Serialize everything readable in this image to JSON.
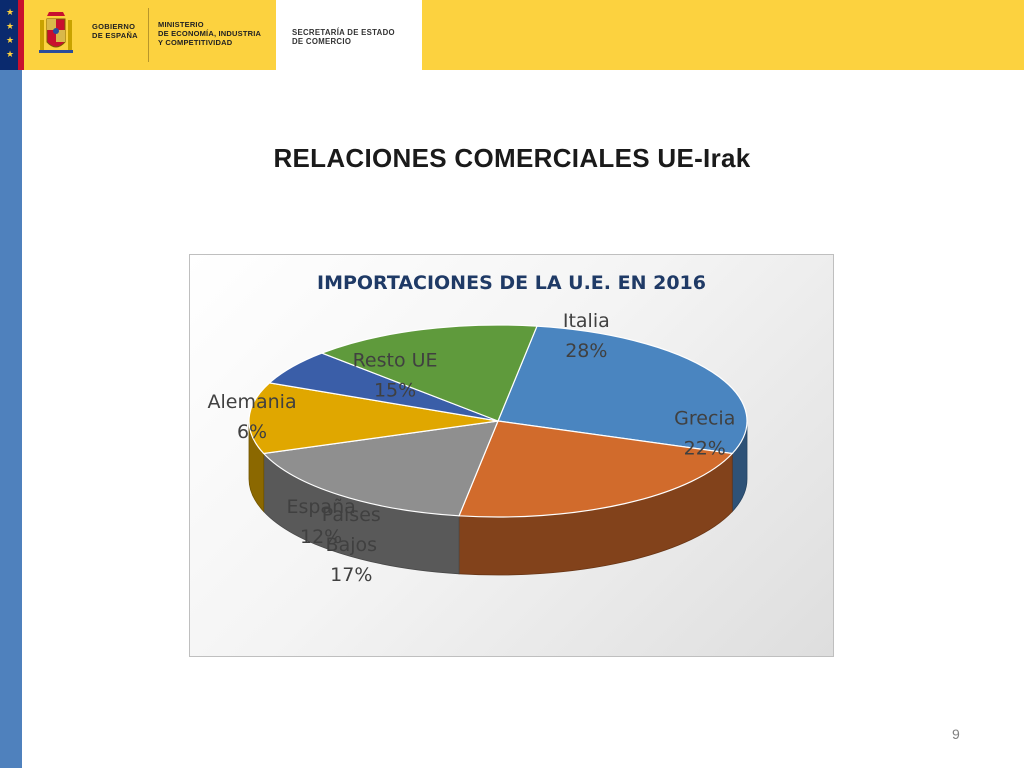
{
  "header": {
    "gobierno_line1": "GOBIERNO",
    "gobierno_line2": "DE ESPAÑA",
    "ministerio_line1": "MINISTERIO",
    "ministerio_line2": "DE ECONOMÍA, INDUSTRIA",
    "ministerio_line3": "Y COMPETITIVIDAD",
    "secretaria_line1": "SECRETARÍA DE ESTADO",
    "secretaria_line2": "DE COMERCIO",
    "colors": {
      "header_yellow": "#fcd23f",
      "side_bar": "#4f81bd",
      "eu_blue": "#0a2a6e"
    }
  },
  "slide": {
    "title": "RELACIONES COMERCIALES UE-Irak",
    "page_number": "9"
  },
  "chart_data": {
    "type": "pie",
    "title": "IMPORTACIONES DE LA U.E. EN 2016",
    "slices": [
      {
        "name": "Italia",
        "value": 28,
        "label": "28%",
        "color": "#4a85c0"
      },
      {
        "name": "Grecia",
        "value": 22,
        "label": "22%",
        "color": "#d16b2c"
      },
      {
        "name": "Paises Bajos",
        "label_lines": [
          "Paises",
          "Bajos"
        ],
        "value": 17,
        "label": "17%",
        "color": "#8f8f8f"
      },
      {
        "name": "España",
        "value": 12,
        "label": "12%",
        "color": "#e0a700"
      },
      {
        "name": "Alemania",
        "value": 6,
        "label": "6%",
        "color": "#3a5ea8"
      },
      {
        "name": "Resto UE",
        "value": 15,
        "label": "15%",
        "color": "#5f9a3c"
      }
    ],
    "style": "3d"
  }
}
